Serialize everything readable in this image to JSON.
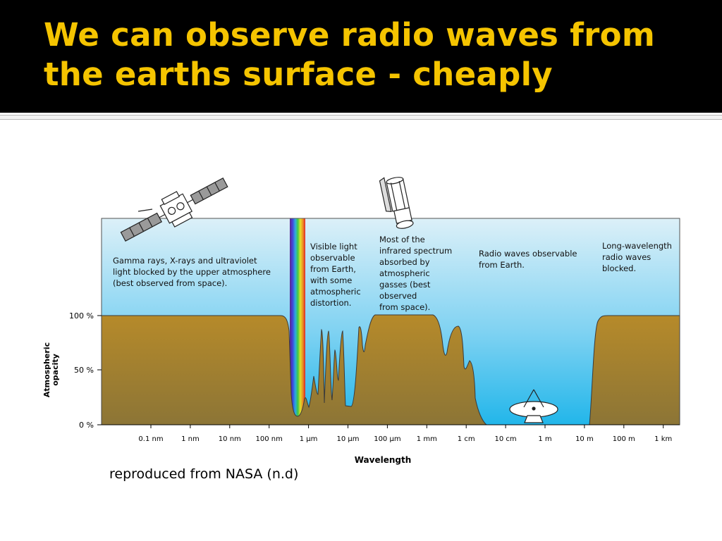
{
  "slide": {
    "title_line1": "We can observe radio waves from",
    "title_line2": "the earths surface - cheaply",
    "caption": "reproduced from NASA (n.d)",
    "title_color": "#f5c400"
  },
  "diagram": {
    "y_axis_label_line1": "Atmospheric",
    "y_axis_label_line2": "opacity",
    "x_axis_label": "Wavelength",
    "y_ticks": [
      "100 %",
      "50 %",
      "0 %"
    ],
    "x_ticks": [
      "0.1 nm",
      "1 nm",
      "10 nm",
      "100 nm",
      "1 µm",
      "10 µm",
      "100 µm",
      "1 mm",
      "1 cm",
      "10 cm",
      "1 m",
      "10 m",
      "100 m",
      "1 km"
    ],
    "annotations": {
      "gamma": [
        "Gamma rays, X-rays and ultraviolet",
        "light blocked by the upper atmosphere",
        "(best observed from space)."
      ],
      "visible": [
        "Visible light",
        "observable",
        "from Earth,",
        "with some",
        "atmospheric",
        "distortion."
      ],
      "infrared": [
        "Most of the",
        "infrared spectrum",
        "absorbed by",
        "atmospheric",
        "gasses (best",
        "observed",
        "from space)."
      ],
      "radio": [
        "Radio waves observable",
        "from Earth."
      ],
      "longwave": [
        "Long-wavelength",
        "radio waves",
        "blocked."
      ]
    },
    "icons": [
      "satellite-icon",
      "space-telescope-icon",
      "radio-dish-icon"
    ],
    "colors": {
      "sky_top": "#d8eef7",
      "sky_bottom": "#29b8ea",
      "ground_top": "#b48a2c",
      "ground_bottom": "#8a7334"
    }
  }
}
